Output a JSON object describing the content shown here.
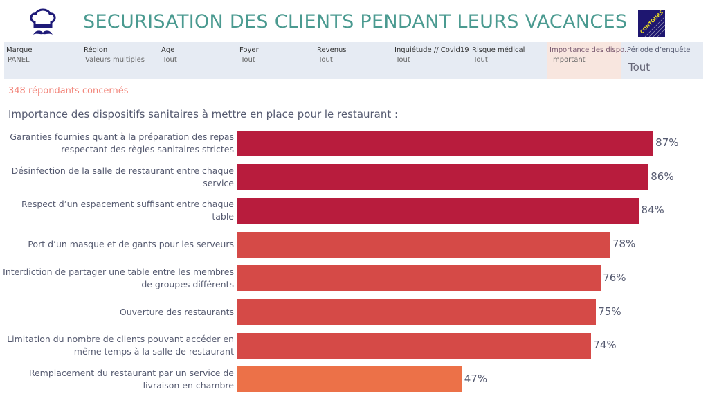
{
  "header": {
    "title": "SECURISATION DES CLIENTS PENDANT LEURS VACANCES",
    "logo_text": "CONTOURS"
  },
  "filters": [
    {
      "label": "Marque",
      "value": "PANEL"
    },
    {
      "label": "Région",
      "value": "Valeurs multiples"
    },
    {
      "label": "Age",
      "value": "Tout"
    },
    {
      "label": "Foyer",
      "value": "Tout"
    },
    {
      "label": "Revenus",
      "value": "Tout"
    },
    {
      "label": "Inquiétude // Covid19",
      "value": "Tout"
    },
    {
      "label": "Risque médical",
      "value": "Tout"
    },
    {
      "label": "Importance des dispo..",
      "value": "Important"
    },
    {
      "label": "Période d’enquête",
      "value": "Tout"
    }
  ],
  "respondents": "348 répondants concernés",
  "chart_data": {
    "type": "bar",
    "orientation": "horizontal",
    "title": "Importance des dispositifs sanitaires à mettre en place pour le restaurant :",
    "categories": [
      "Garanties fournies quant à la préparation des repas respectant des règles sanitaires strictes",
      "Désinfection de la salle de restaurant entre chaque service",
      "Respect d’un espacement suffisant entre chaque table",
      "Port d’un masque et de gants pour les serveurs",
      "Interdiction de partager une table entre les membres de groupes différents",
      "Ouverture des restaurants",
      "Limitation du nombre de clients pouvant accéder en même temps à la salle de restaurant",
      "Remplacement du restaurant par un service de livraison en chambre"
    ],
    "values": [
      87,
      86,
      84,
      78,
      76,
      75,
      74,
      47
    ],
    "labels": [
      "87%",
      "86%",
      "84%",
      "78%",
      "76%",
      "75%",
      "74%",
      "47%"
    ],
    "colors": [
      "#b81c3d",
      "#b81c3d",
      "#b81c3d",
      "#d54a47",
      "#d54a47",
      "#d54a47",
      "#d54a47",
      "#ec7148"
    ],
    "xlim": [
      0,
      100
    ]
  }
}
